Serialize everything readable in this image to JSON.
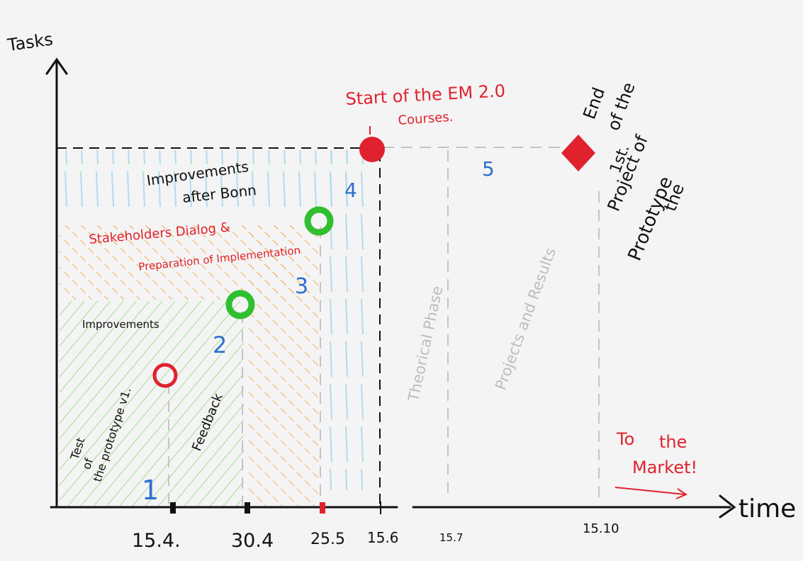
{
  "axes": {
    "y_label": "Tasks",
    "x_label": "time",
    "ticks": [
      "15.4.",
      "30.4",
      "25.5",
      "15.6",
      "15.7",
      "15.10"
    ]
  },
  "phases": [
    "1",
    "2",
    "3",
    "4",
    "5"
  ],
  "labels": {
    "test_prototype": [
      "Test",
      "of",
      "the prototype v1."
    ],
    "feedback": "Feedback",
    "improvements": "Improvements",
    "stakeholders": "Stakeholders Dialog &",
    "preparation": "Preparation of Implementation",
    "improvements_bonn": [
      "Improvements",
      "after Bonn"
    ],
    "start_em20": [
      "Start of the EM 2.0",
      "Courses."
    ],
    "theorical_phase": "Theorical Phase",
    "projects_results": "Projects and Results",
    "end_project": [
      "End",
      "of the",
      "1st.",
      "Project of",
      "the",
      "Prototype"
    ],
    "to_market": [
      "To",
      "the",
      "Market!"
    ]
  },
  "colors": {
    "red": "#e0222e",
    "green": "#2fbf2f",
    "blue": "#2e6fce",
    "orange": "#f2a33a",
    "light_green": "#9ed98d",
    "light_blue": "#a9d8f0",
    "grey": "#bdbdbd",
    "ink": "#111111"
  }
}
